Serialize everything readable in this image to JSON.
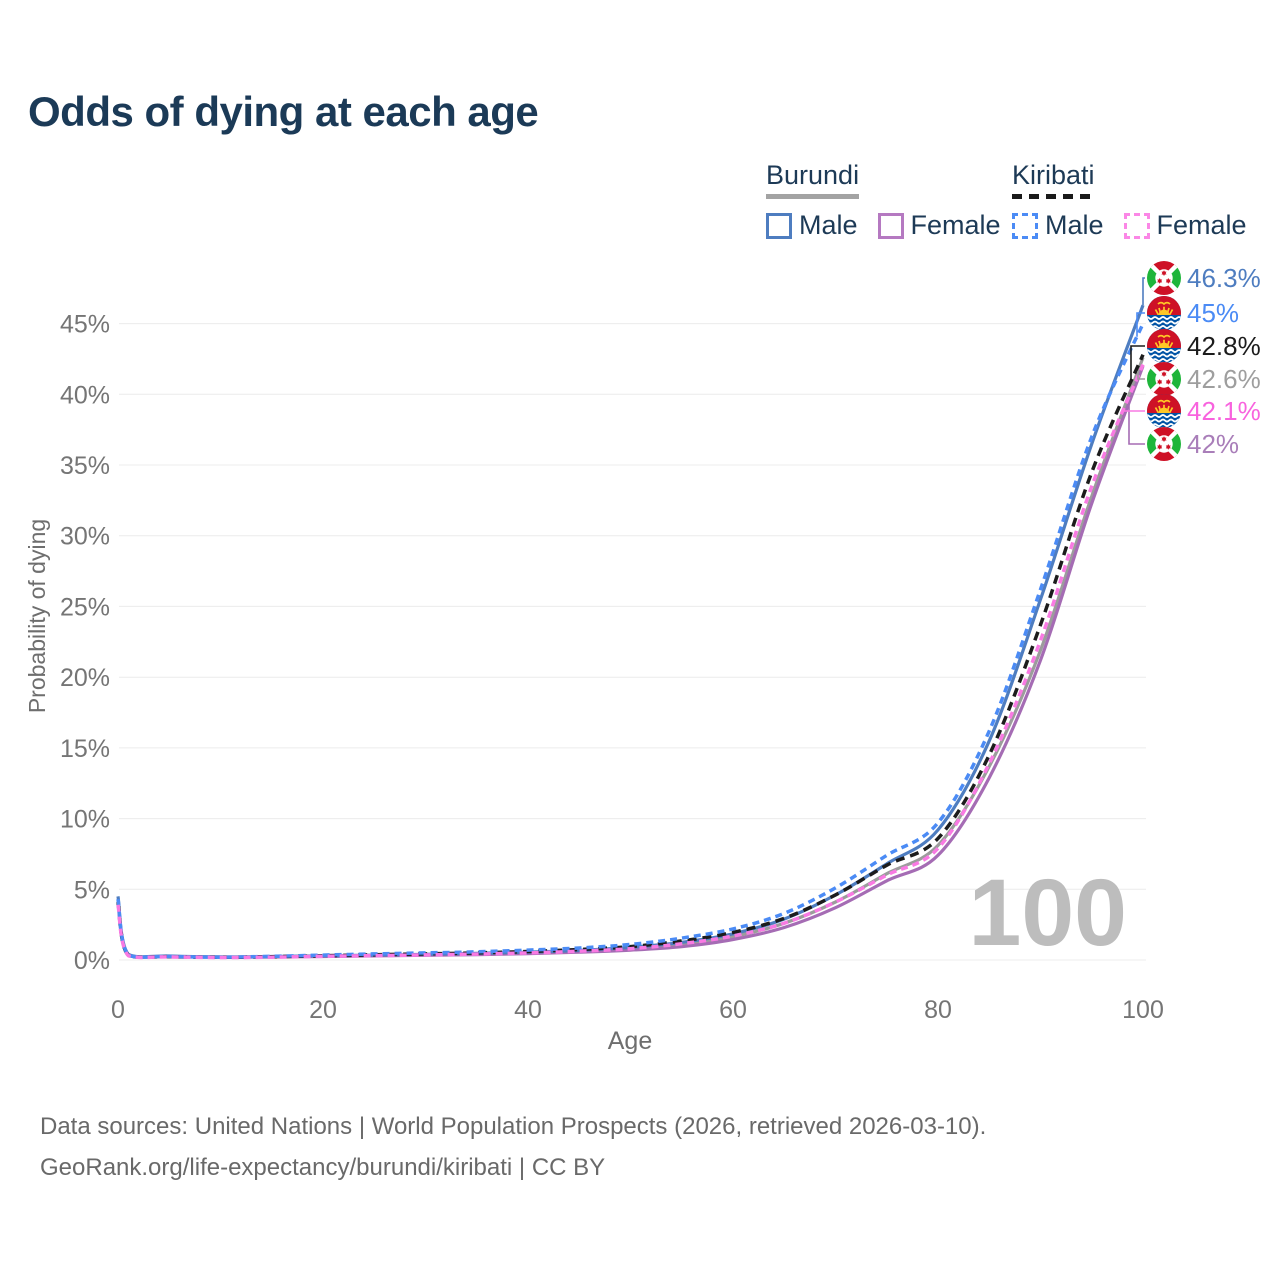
{
  "title": "Odds of dying at each age",
  "legend": {
    "groups": [
      {
        "country": "Burundi",
        "underline": "solid",
        "underline_color": "#a3a3a3",
        "items": [
          {
            "label": "Male",
            "color": "#4e7dc0",
            "dash": false
          },
          {
            "label": "Female",
            "color": "#b579c1",
            "dash": false
          }
        ]
      },
      {
        "country": "Kiribati",
        "underline": "dashed",
        "underline_color": "#1a1a1a",
        "items": [
          {
            "label": "Male",
            "color": "#4b8bf5",
            "dash": true
          },
          {
            "label": "Female",
            "color": "#fb87e6",
            "dash": true
          }
        ]
      }
    ]
  },
  "axes": {
    "x": {
      "label": "Age",
      "ticks": [
        0,
        20,
        40,
        60,
        80,
        100
      ],
      "range": [
        0,
        100
      ]
    },
    "y": {
      "label": "Probability of dying",
      "ticks": [
        "0%",
        "5%",
        "10%",
        "15%",
        "20%",
        "25%",
        "30%",
        "35%",
        "40%",
        "45%"
      ],
      "tick_values": [
        0,
        5,
        10,
        15,
        20,
        25,
        30,
        35,
        40,
        45
      ],
      "range": [
        0,
        48
      ]
    }
  },
  "watermark": "100",
  "end_labels": [
    {
      "text": "46.3%",
      "color": "#4e7dc0",
      "flag": "burundi",
      "series": "Burundi Male"
    },
    {
      "text": "45%",
      "color": "#4b8bf5",
      "flag": "kiribati",
      "series": "Kiribati Male"
    },
    {
      "text": "42.8%",
      "color": "#1c1c1c",
      "flag": "kiribati",
      "series": "Kiribati Both sexes"
    },
    {
      "text": "42.6%",
      "color": "#9e9e9e",
      "flag": "burundi",
      "series": "Burundi Both sexes"
    },
    {
      "text": "42.1%",
      "color": "#f863de",
      "flag": "kiribati",
      "series": "Kiribati Female"
    },
    {
      "text": "42%",
      "color": "#a97eb9",
      "flag": "burundi",
      "series": "Burundi Female"
    }
  ],
  "footer": {
    "line1": "Data sources: United Nations | World Population Prospects (2026, retrieved 2026-03-10).",
    "line2": "GeoRank.org/life-expectancy/burundi/kiribati | CC BY"
  },
  "chart_data": {
    "type": "line",
    "title": "Odds of dying at each age",
    "xlabel": "Age",
    "ylabel": "Probability of dying",
    "xlim": [
      0,
      100
    ],
    "ylim": [
      0,
      48
    ],
    "grid": true,
    "legend_position": "top-right",
    "x": [
      0,
      1,
      5,
      10,
      15,
      20,
      25,
      30,
      35,
      40,
      45,
      50,
      55,
      60,
      65,
      70,
      75,
      80,
      85,
      90,
      95,
      100
    ],
    "series": [
      {
        "name": "Burundi Both sexes",
        "country": "Burundi",
        "sex": "both",
        "color": "#9c9c9c",
        "dash": null,
        "end_value_pct": 42.6,
        "label_index": 3,
        "values": [
          4.2,
          0.37,
          0.26,
          0.21,
          0.22,
          0.28,
          0.32,
          0.37,
          0.43,
          0.5,
          0.62,
          0.8,
          1.1,
          1.65,
          2.6,
          4.1,
          6.1,
          8.1,
          13.7,
          21.9,
          32.8,
          42.6
        ]
      },
      {
        "name": "Burundi Female",
        "country": "Burundi",
        "sex": "female",
        "color": "#a56cb4",
        "dash": null,
        "end_value_pct": 42.0,
        "label_index": 5,
        "values": [
          4.0,
          0.34,
          0.24,
          0.2,
          0.21,
          0.25,
          0.29,
          0.33,
          0.38,
          0.45,
          0.55,
          0.7,
          0.95,
          1.45,
          2.3,
          3.7,
          5.6,
          7.4,
          12.9,
          21.2,
          32.3,
          42.0
        ]
      },
      {
        "name": "Burundi Male",
        "country": "Burundi",
        "sex": "male",
        "color": "#4e7dc0",
        "dash": null,
        "end_value_pct": 46.3,
        "label_index": 0,
        "values": [
          4.5,
          0.4,
          0.28,
          0.22,
          0.25,
          0.3,
          0.34,
          0.4,
          0.47,
          0.55,
          0.68,
          0.9,
          1.25,
          1.85,
          2.9,
          4.6,
          6.8,
          9.2,
          15.5,
          25.5,
          36.5,
          46.3
        ]
      },
      {
        "name": "Kiribati Both sexes",
        "country": "Kiribati",
        "sex": "both",
        "color": "#1c1c1c",
        "dash": "9 6",
        "end_value_pct": 42.8,
        "label_index": 2,
        "values": [
          4.1,
          0.33,
          0.23,
          0.19,
          0.23,
          0.3,
          0.37,
          0.43,
          0.5,
          0.6,
          0.74,
          0.95,
          1.35,
          1.95,
          2.95,
          4.6,
          6.7,
          8.6,
          14.5,
          23.7,
          34.5,
          42.8
        ]
      },
      {
        "name": "Kiribati Male",
        "country": "Kiribati",
        "sex": "male",
        "color": "#4b8bf5",
        "dash": "7 5",
        "end_value_pct": 45.0,
        "label_index": 1,
        "values": [
          4.3,
          0.35,
          0.25,
          0.2,
          0.26,
          0.35,
          0.43,
          0.5,
          0.58,
          0.7,
          0.85,
          1.1,
          1.55,
          2.2,
          3.3,
          5.1,
          7.4,
          9.7,
          16.2,
          26.2,
          37.0,
          45.0
        ]
      },
      {
        "name": "Kiribati Female",
        "country": "Kiribati",
        "sex": "female",
        "color": "#f97ae3",
        "dash": "7 5",
        "end_value_pct": 42.1,
        "label_index": 4,
        "values": [
          3.9,
          0.31,
          0.22,
          0.18,
          0.2,
          0.26,
          0.31,
          0.36,
          0.42,
          0.5,
          0.62,
          0.8,
          1.15,
          1.7,
          2.6,
          4.1,
          6.0,
          7.9,
          13.9,
          22.6,
          33.5,
          42.1
        ]
      }
    ]
  }
}
